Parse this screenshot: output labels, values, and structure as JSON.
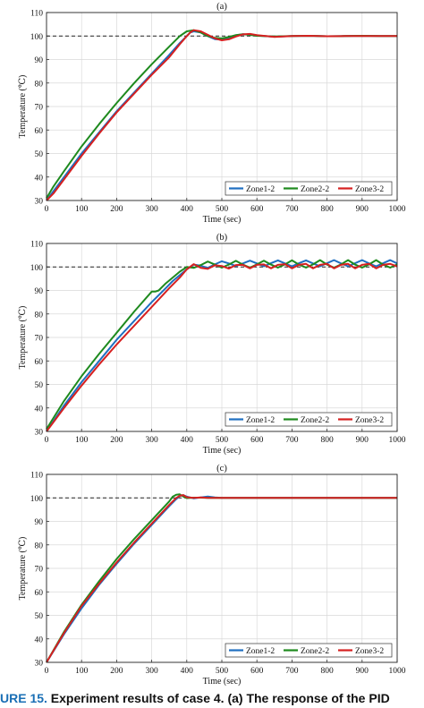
{
  "chart_data": [
    {
      "type": "line",
      "title": "(a)",
      "xlabel": "Time (sec)",
      "ylabel": "Temperature (℃)",
      "xlim": [
        0,
        1000
      ],
      "ylim": [
        30,
        110
      ],
      "xticks": [
        "0",
        "100",
        "200",
        "300",
        "400",
        "500",
        "600",
        "700",
        "800",
        "900",
        "1000"
      ],
      "yticks": [
        "30",
        "40",
        "50",
        "60",
        "70",
        "80",
        "90",
        "100",
        "110"
      ],
      "grid": true,
      "legend_position": "bottom-right",
      "setpoint": 100,
      "series": [
        {
          "name": "Zone1-2",
          "color": "#1f6fc0",
          "x": [
            0,
            20,
            50,
            100,
            150,
            200,
            250,
            300,
            350,
            380,
            400,
            410,
            420,
            440,
            460,
            480,
            500,
            520,
            540,
            560,
            580,
            600,
            650,
            700,
            750,
            800,
            850,
            900,
            950,
            1000
          ],
          "y": [
            30,
            34,
            40,
            50,
            59,
            68,
            76,
            84,
            92,
            97,
            100,
            101.5,
            102,
            101.5,
            100,
            98.7,
            98.5,
            99.2,
            100.3,
            100.8,
            100.6,
            100.2,
            99.7,
            100,
            100.1,
            99.9,
            100,
            100.1,
            100,
            100
          ]
        },
        {
          "name": "Zone2-2",
          "color": "#1e8a1e",
          "x": [
            0,
            20,
            50,
            100,
            150,
            200,
            250,
            300,
            350,
            380,
            400,
            420,
            440,
            460,
            480,
            500,
            520,
            540,
            560,
            580,
            600,
            650,
            700,
            750,
            800,
            850,
            900,
            950,
            1000
          ],
          "y": [
            31,
            36,
            42.5,
            53,
            62.5,
            71.5,
            80,
            88,
            95.5,
            100,
            102,
            102.5,
            101.5,
            100,
            99.2,
            99,
            99.6,
            100.4,
            100.8,
            100.5,
            100.1,
            99.8,
            100,
            100.1,
            99.9,
            100,
            100.1,
            100,
            100
          ]
        },
        {
          "name": "Zone3-2",
          "color": "#d62020",
          "x": [
            0,
            20,
            50,
            100,
            150,
            200,
            250,
            300,
            350,
            380,
            400,
            410,
            420,
            440,
            460,
            480,
            500,
            520,
            540,
            560,
            580,
            600,
            650,
            700,
            750,
            800,
            850,
            900,
            950,
            1000
          ],
          "y": [
            30,
            33,
            39,
            49,
            58.5,
            67.5,
            75.5,
            83.5,
            91,
            96.5,
            100,
            101.5,
            102.5,
            102,
            100.5,
            99,
            98.2,
            98.6,
            99.8,
            100.7,
            100.9,
            100.4,
            99.6,
            100,
            100.1,
            99.9,
            100,
            100,
            100,
            100
          ]
        }
      ]
    },
    {
      "type": "line",
      "title": "(b)",
      "xlabel": "Time (sec)",
      "ylabel": "Temperature (℃)",
      "xlim": [
        0,
        1000
      ],
      "ylim": [
        30,
        110
      ],
      "xticks": [
        "0",
        "100",
        "200",
        "300",
        "400",
        "500",
        "600",
        "700",
        "800",
        "900",
        "1000"
      ],
      "yticks": [
        "30",
        "40",
        "50",
        "60",
        "70",
        "80",
        "90",
        "100",
        "110"
      ],
      "grid": true,
      "legend_position": "bottom-right",
      "setpoint": 100,
      "series": [
        {
          "name": "Zone1-2",
          "color": "#1f6fc0",
          "x": [
            0,
            50,
            100,
            150,
            200,
            250,
            300,
            340,
            360,
            380,
            400,
            420,
            440,
            460,
            480,
            500,
            520,
            540,
            560,
            580,
            600,
            620,
            640,
            660,
            680,
            700,
            720,
            740,
            760,
            780,
            800,
            820,
            840,
            860,
            880,
            900,
            920,
            940,
            960,
            980,
            1000
          ],
          "y": [
            30,
            41,
            51,
            60,
            69,
            77,
            85,
            91,
            94,
            96.5,
            99,
            101,
            100.5,
            99.6,
            101.1,
            102.4,
            101.5,
            100.4,
            101.5,
            102.7,
            101.5,
            100.3,
            101.6,
            102.8,
            101.5,
            100.3,
            101.6,
            102.8,
            101.5,
            100.3,
            101.6,
            102.9,
            101.5,
            100.3,
            101.6,
            102.9,
            101.5,
            100.3,
            101.6,
            102.9,
            101.5
          ]
        },
        {
          "name": "Zone2-2",
          "color": "#1e8a1e",
          "x": [
            0,
            50,
            100,
            150,
            200,
            250,
            300,
            310,
            320,
            340,
            360,
            380,
            400,
            420,
            440,
            460,
            480,
            500,
            520,
            540,
            560,
            580,
            600,
            620,
            640,
            660,
            680,
            700,
            720,
            740,
            760,
            780,
            800,
            820,
            840,
            860,
            880,
            900,
            920,
            940,
            960,
            980,
            1000
          ],
          "y": [
            31,
            43,
            53.5,
            63,
            72,
            81,
            89.5,
            89.5,
            90,
            93,
            95.5,
            98,
            100,
            99.6,
            100.8,
            102.3,
            101,
            99.7,
            101,
            102.6,
            101,
            99.7,
            101.1,
            102.7,
            101,
            99.7,
            101.1,
            102.8,
            101,
            99.7,
            101.1,
            102.9,
            101,
            99.7,
            101.1,
            102.9,
            101,
            99.7,
            101.1,
            102.9,
            101,
            99.7,
            101.1
          ]
        },
        {
          "name": "Zone3-2",
          "color": "#d62020",
          "x": [
            0,
            50,
            100,
            150,
            200,
            250,
            300,
            350,
            380,
            400,
            420,
            440,
            460,
            480,
            500,
            520,
            540,
            560,
            580,
            600,
            620,
            640,
            660,
            680,
            700,
            720,
            740,
            760,
            780,
            800,
            820,
            840,
            860,
            880,
            900,
            920,
            940,
            960,
            980,
            1000
          ],
          "y": [
            30,
            40,
            49.5,
            58.5,
            67,
            75,
            83,
            91,
            95.5,
            99,
            101.2,
            99.6,
            99.2,
            100.7,
            100.4,
            99.3,
            100.8,
            100.9,
            99.4,
            100.9,
            101.1,
            99.4,
            100.9,
            101.2,
            99.4,
            100.9,
            101.3,
            99.4,
            100.9,
            101.3,
            99.4,
            100.9,
            101.3,
            99.4,
            100.9,
            101.3,
            99.4,
            100.9,
            101.3,
            100.2
          ]
        }
      ]
    },
    {
      "type": "line",
      "title": "(c)",
      "xlabel": "Time (sec)",
      "ylabel": "Temperature (℃)",
      "xlim": [
        0,
        1000
      ],
      "ylim": [
        30,
        110
      ],
      "xticks": [
        "0",
        "100",
        "200",
        "300",
        "400",
        "500",
        "600",
        "700",
        "800",
        "900",
        "1000"
      ],
      "yticks": [
        "30",
        "40",
        "50",
        "60",
        "70",
        "80",
        "90",
        "100",
        "110"
      ],
      "grid": true,
      "legend_position": "bottom-right",
      "setpoint": 100,
      "series": [
        {
          "name": "Zone1-2",
          "color": "#1f6fc0",
          "x": [
            0,
            50,
            100,
            150,
            200,
            250,
            300,
            350,
            370,
            380,
            390,
            400,
            420,
            440,
            460,
            480,
            500,
            550,
            600,
            700,
            800,
            900,
            1000
          ],
          "y": [
            30,
            42,
            53,
            63,
            72,
            80.5,
            88.5,
            96.5,
            99.5,
            100.8,
            101.2,
            100.5,
            99.8,
            100.2,
            100.6,
            100.2,
            100,
            100,
            100,
            100,
            100,
            100,
            100
          ]
        },
        {
          "name": "Zone2-2",
          "color": "#1e8a1e",
          "x": [
            0,
            50,
            100,
            150,
            200,
            250,
            300,
            350,
            360,
            370,
            380,
            390,
            400,
            420,
            440,
            460,
            500,
            550,
            600,
            700,
            800,
            900,
            1000
          ],
          "y": [
            30,
            43,
            54.5,
            64.5,
            74,
            82.5,
            90.5,
            98.5,
            100.5,
            101.3,
            101.5,
            100.6,
            99.9,
            100.1,
            100.1,
            100,
            100,
            100,
            100,
            100,
            100,
            100,
            100
          ]
        },
        {
          "name": "Zone3-2",
          "color": "#d62020",
          "x": [
            0,
            50,
            100,
            150,
            200,
            250,
            300,
            350,
            370,
            380,
            390,
            400,
            420,
            440,
            460,
            500,
            550,
            600,
            700,
            800,
            900,
            1000
          ],
          "y": [
            30,
            42.5,
            54,
            63.5,
            72.5,
            81,
            89,
            97,
            100,
            100.9,
            101.2,
            100.3,
            100,
            100.2,
            100,
            100,
            100,
            100,
            100,
            100,
            100,
            100
          ]
        }
      ]
    }
  ],
  "caption": {
    "lead": "URE 15.",
    "text": " Experiment results of case 4. (a) The response of the PID"
  }
}
